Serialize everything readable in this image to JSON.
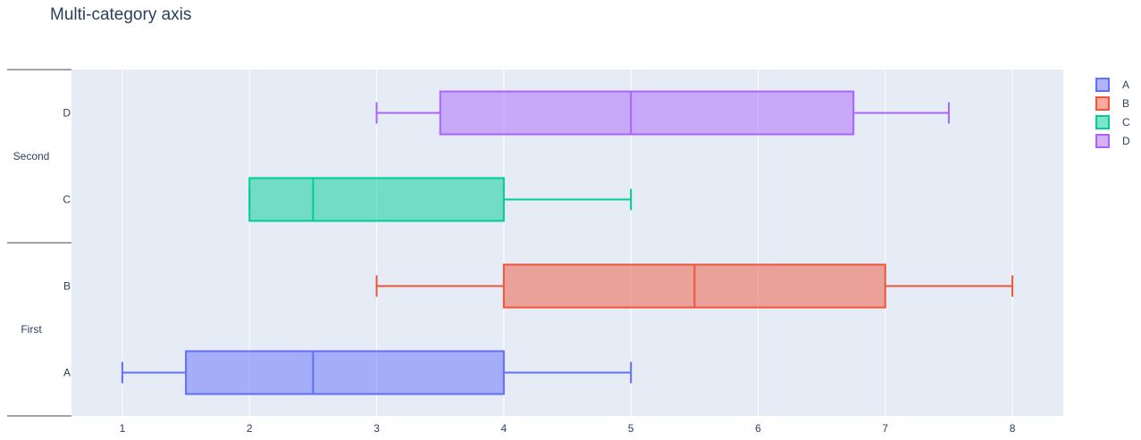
{
  "chart_data": {
    "type": "box",
    "title": "Multi-category axis",
    "orientation": "horizontal",
    "xlim": [
      0.6,
      8.4
    ],
    "x_ticks": [
      1,
      2,
      3,
      4,
      5,
      6,
      7,
      8
    ],
    "y_groups": [
      {
        "name": "First",
        "categories": [
          "A",
          "B"
        ]
      },
      {
        "name": "Second",
        "categories": [
          "C",
          "D"
        ]
      }
    ],
    "series": [
      {
        "name": "A",
        "group": "First",
        "category": "A",
        "min": 1,
        "q1": 1.5,
        "median": 2.5,
        "q3": 4,
        "max": 5,
        "color": "#636efa"
      },
      {
        "name": "B",
        "group": "First",
        "category": "B",
        "min": 3,
        "q1": 4,
        "median": 5.5,
        "q3": 7,
        "max": 8,
        "color": "#EF553B"
      },
      {
        "name": "C",
        "group": "Second",
        "category": "C",
        "min": 2,
        "q1": 2,
        "median": 2.5,
        "q3": 4,
        "max": 5,
        "color": "#00cc96"
      },
      {
        "name": "D",
        "group": "Second",
        "category": "D",
        "min": 3,
        "q1": 3.5,
        "median": 5,
        "q3": 6.75,
        "max": 7.5,
        "color": "#ab63fa"
      }
    ],
    "legend": {
      "position": "top-right",
      "entries": [
        "A",
        "B",
        "C",
        "D"
      ]
    },
    "grid": true,
    "plot_bgcolor": "#e5ecf6"
  }
}
